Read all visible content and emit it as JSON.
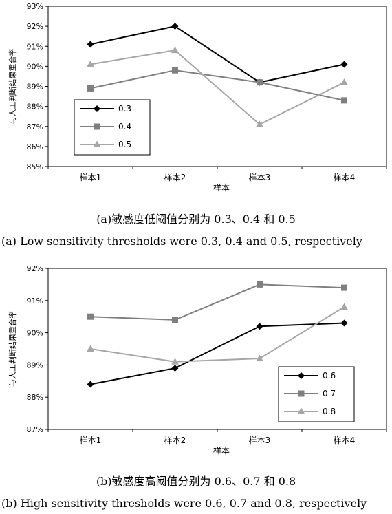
{
  "chart_data": [
    {
      "type": "line",
      "xlabel": "样本",
      "ylabel": "与人工判断结果重合率",
      "categories": [
        "样本1",
        "样本2",
        "样本3",
        "样本4"
      ],
      "ylim": [
        85,
        93
      ],
      "yticks": [
        "85%",
        "86%",
        "87%",
        "88%",
        "89%",
        "90%",
        "91%",
        "92%",
        "93%"
      ],
      "legend_position": "bottom-left",
      "series": [
        {
          "name": "0.3",
          "marker": "diamond",
          "color": "#000000",
          "values": [
            91.1,
            92.0,
            89.2,
            90.1
          ]
        },
        {
          "name": "0.4",
          "marker": "square",
          "color": "#7f7f7f",
          "values": [
            88.9,
            89.8,
            89.2,
            88.3
          ]
        },
        {
          "name": "0.5",
          "marker": "triangle",
          "color": "#a6a6a6",
          "values": [
            90.1,
            90.8,
            87.1,
            89.2
          ]
        }
      ]
    },
    {
      "type": "line",
      "xlabel": "样本",
      "ylabel": "与人工判断结果重合率",
      "categories": [
        "样本1",
        "样本2",
        "样本3",
        "样本4"
      ],
      "ylim": [
        87,
        92
      ],
      "yticks": [
        "87%",
        "88%",
        "89%",
        "90%",
        "91%",
        "92%"
      ],
      "legend_position": "bottom-right",
      "series": [
        {
          "name": "0.6",
          "marker": "diamond",
          "color": "#000000",
          "values": [
            88.4,
            88.9,
            90.2,
            90.3
          ]
        },
        {
          "name": "0.7",
          "marker": "square",
          "color": "#7f7f7f",
          "values": [
            90.5,
            90.4,
            91.5,
            91.4
          ]
        },
        {
          "name": "0.8",
          "marker": "triangle",
          "color": "#a6a6a6",
          "values": [
            89.5,
            89.1,
            89.2,
            90.8
          ]
        }
      ]
    }
  ],
  "captions": {
    "a_cn": "(a)敏感度低阈值分别为 0.3、0.4 和 0.5",
    "a_en": "(a) Low sensitivity thresholds were 0.3, 0.4 and 0.5, respectively",
    "b_cn": "(b)敏感度高阈值分别为 0.6、0.7 和 0.8",
    "b_en": "(b) High sensitivity thresholds were 0.6, 0.7 and 0.8, respectively"
  }
}
